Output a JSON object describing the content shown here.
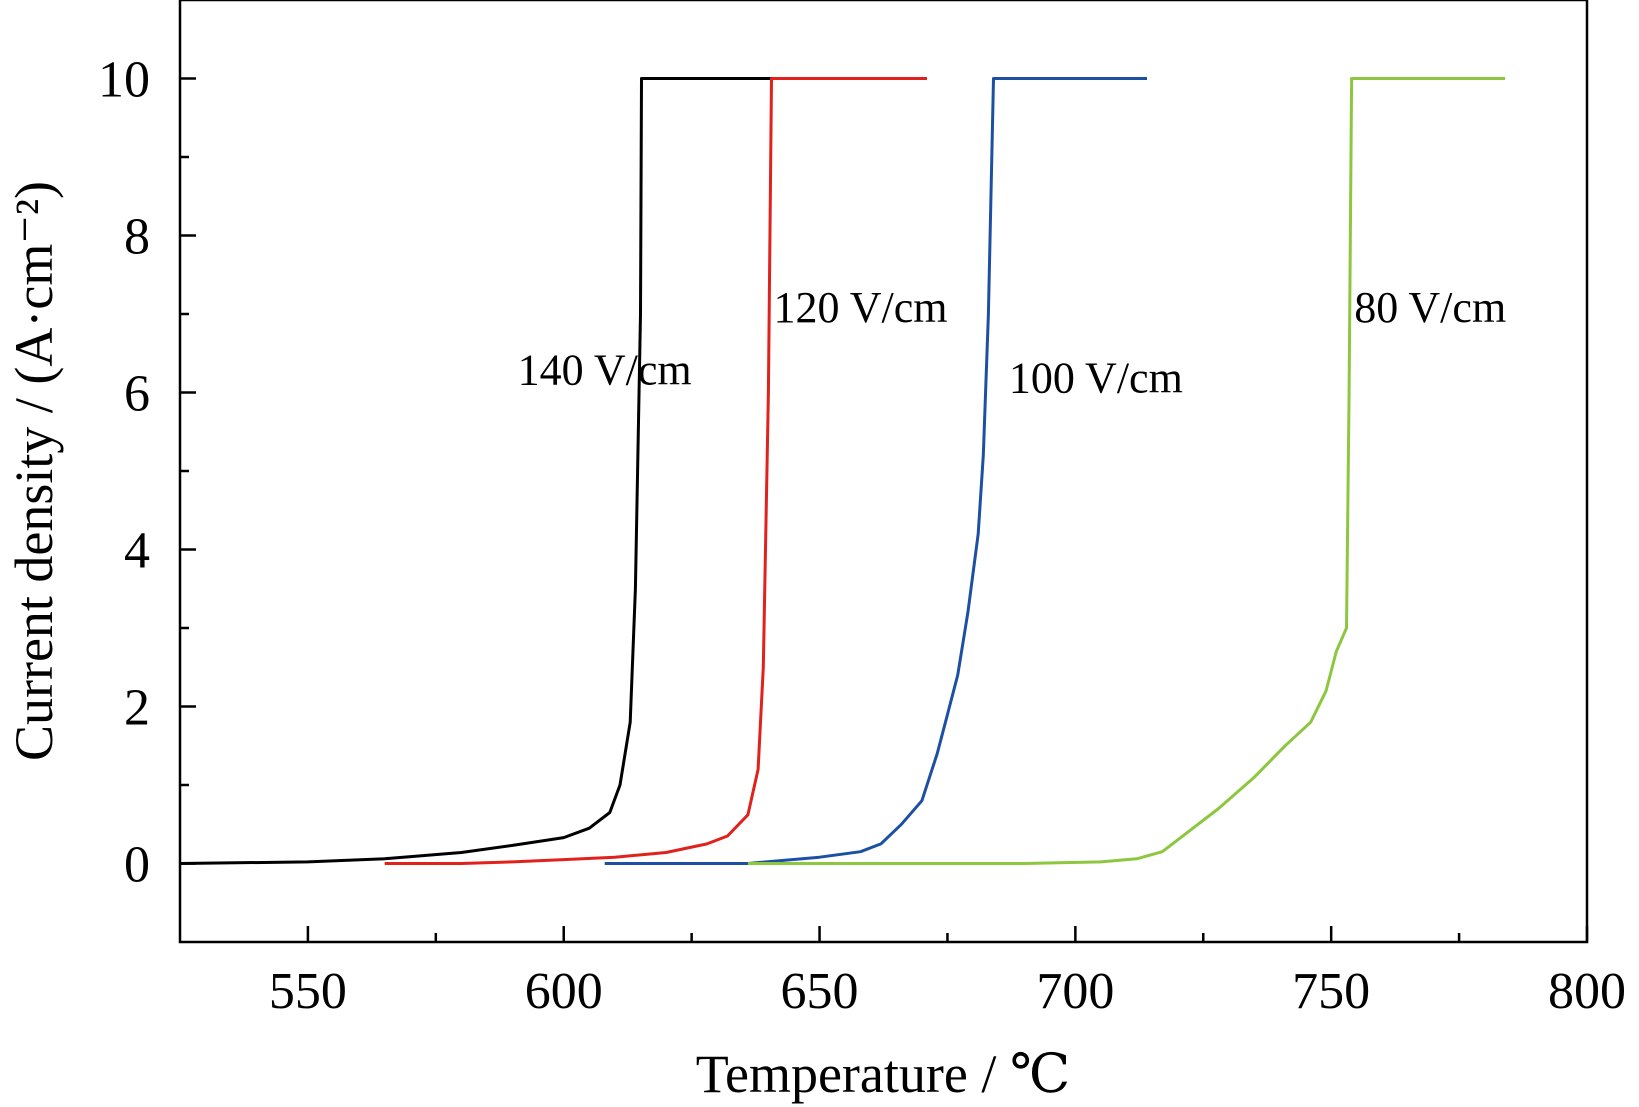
{
  "chart_data": {
    "type": "line",
    "title": "",
    "xlabel": "Temperature / ℃",
    "ylabel": "Current density / (A·cm⁻²)",
    "xlim": [
      525,
      800
    ],
    "ylim": [
      -1,
      11
    ],
    "x_ticks": [
      550,
      600,
      650,
      700,
      750,
      800
    ],
    "x_tick_labels": [
      "550",
      "600",
      "650",
      "700",
      "750",
      "800"
    ],
    "y_ticks": [
      0,
      2,
      4,
      6,
      8,
      10
    ],
    "y_tick_labels": [
      "0",
      "2",
      "4",
      "6",
      "8",
      "10"
    ],
    "grid": false,
    "legend": "none",
    "series": [
      {
        "name": "140 V/cm",
        "color": "#000000",
        "x": [
          525,
          550,
          565,
          580,
          590,
          600,
          605,
          609,
          611,
          613,
          614,
          615,
          615.2,
          630,
          645
        ],
        "y": [
          0.0,
          0.02,
          0.06,
          0.14,
          0.23,
          0.33,
          0.45,
          0.65,
          1.0,
          1.8,
          3.5,
          7.0,
          10.0,
          10.0,
          10.0
        ]
      },
      {
        "name": "120 V/cm",
        "color": "#e0211c",
        "x": [
          565,
          580,
          590,
          600,
          610,
          620,
          628,
          632,
          636,
          638,
          639,
          640,
          640.6,
          650,
          671
        ],
        "y": [
          0.0,
          0.0,
          0.02,
          0.05,
          0.08,
          0.14,
          0.25,
          0.35,
          0.62,
          1.2,
          2.5,
          6.0,
          10.0,
          10.0,
          10.0
        ]
      },
      {
        "name": "100 V/cm",
        "color": "#1d4fa3",
        "x": [
          608,
          620,
          636,
          650,
          658,
          662,
          666,
          670,
          673,
          675,
          677,
          679,
          681,
          682,
          683,
          684,
          690,
          714
        ],
        "y": [
          0.0,
          0.0,
          0.0,
          0.08,
          0.15,
          0.25,
          0.5,
          0.8,
          1.4,
          1.9,
          2.4,
          3.2,
          4.2,
          5.2,
          7.0,
          10.0,
          10.0,
          10.0
        ]
      },
      {
        "name": "80 V/cm",
        "color": "#8dc63f",
        "x": [
          636,
          660,
          690,
          705,
          712,
          717,
          722,
          728,
          735,
          741,
          746,
          749,
          751,
          753,
          753.5,
          754,
          765,
          784
        ],
        "y": [
          0.0,
          0.0,
          0.0,
          0.02,
          0.06,
          0.15,
          0.4,
          0.7,
          1.1,
          1.5,
          1.8,
          2.2,
          2.7,
          3.0,
          6.0,
          10.0,
          10.0,
          10.0
        ]
      }
    ],
    "annotations": [
      {
        "text": "140 V/cm",
        "x": 591,
        "y": 6.1
      },
      {
        "text": "120 V/cm",
        "x": 641,
        "y": 6.9
      },
      {
        "text": "100 V/cm",
        "x": 687,
        "y": 6.0
      },
      {
        "text": "80 V/cm",
        "x": 754.5,
        "y": 6.9
      }
    ]
  }
}
